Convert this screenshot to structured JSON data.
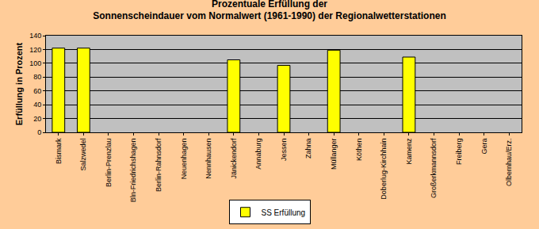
{
  "chart_data": {
    "type": "bar",
    "title": "Prozentuale Erfüllung der Sonnenscheindauer vom Normalwert (1961-1990) der Regionalwetterstationen",
    "y_label": "Erfüllung in Prozent",
    "categories": [
      "Bismark",
      "Salzwedel",
      "Berlin-Prenzlau",
      "Bln-Friedrichshagen",
      "Berlin-Rahnsdorf",
      "Neuenhagen",
      "Nennhausen",
      "Jänickendorf",
      "Annaburg",
      "Jessen",
      "Zahna",
      "Müllanger",
      "Köthen",
      "Doberlug-Kirchhain",
      "Kamenz",
      "Großerkmannsdorf",
      "Freiberg",
      "Gera",
      "Olbernhau/Erz."
    ],
    "series": [
      {
        "name": "SS Erfüllung",
        "color": "#FFFF00",
        "values": [
          122,
          122,
          null,
          null,
          null,
          null,
          null,
          105,
          null,
          97,
          null,
          119,
          null,
          null,
          109,
          null,
          null,
          null,
          null
        ]
      }
    ],
    "ylim": [
      0,
      140
    ],
    "yticks": [
      0,
      20,
      40,
      60,
      80,
      100,
      120,
      140
    ],
    "grid": true,
    "legend": "bottom"
  }
}
